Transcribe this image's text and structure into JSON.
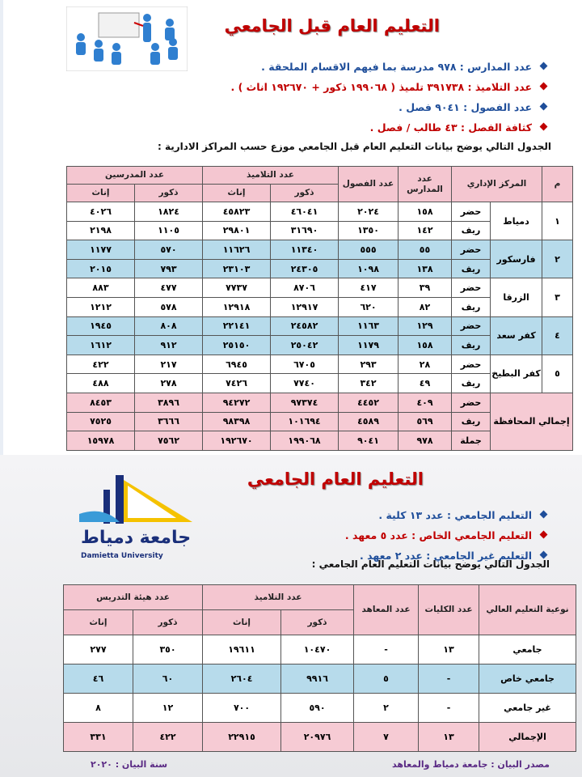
{
  "section1": {
    "title": "التعليم العام قبل الجامعي",
    "bullets": [
      {
        "text": "عدد المدارس : ٩٧٨ مدرسة بما فيهم الاقسام الملحقة .",
        "color": "#1f4e9a"
      },
      {
        "text": "عدد التلاميذ : ٣٩١٧٣٨ تلميذ ( ١٩٩٠٦٨ ذكور + ١٩٢٦٧٠ اناث ) .",
        "color": "#c00000"
      },
      {
        "text": "عدد الفصول : ٩٠٤١ فصل .",
        "color": "#1f4e9a"
      },
      {
        "text": "كثافة الفصل : ٤٣ طالب / فصل .",
        "color": "#c00000"
      }
    ],
    "intro": "الجدول التالي يوضح بيانات التعليم العام قبل الجامعي موزع حسب المراكز الادارية :",
    "table": {
      "headers": {
        "num": "م",
        "center": "المركز الإداري",
        "schools": "عدد المدارس",
        "classes": "عدد الفصول",
        "students": "عدد التلاميذ",
        "teachers": "عدد المدرسين",
        "male": "ذكور",
        "female": "إناث"
      },
      "groups": [
        {
          "num": "١",
          "center": "دمياط",
          "rows": [
            [
              "حضر",
              "١٥٨",
              "٢٠٢٤",
              "٤٦٠٤١",
              "٤٥٨٢٣",
              "١٨٢٤",
              "٤٠٢٦"
            ],
            [
              "ريف",
              "١٤٢",
              "١٣٥٠",
              "٣١٦٩٠",
              "٢٩٨٠١",
              "١١٠٥",
              "٢١٩٨"
            ]
          ]
        },
        {
          "num": "٢",
          "center": "فارسكور",
          "rows": [
            [
              "حضر",
              "٥٥",
              "٥٥٥",
              "١١٣٤٠",
              "١١٦٢٦",
              "٥٧٠",
              "١١٧٧"
            ],
            [
              "ريف",
              "١٣٨",
              "١٠٩٨",
              "٢٤٣٠٥",
              "٢٣١٠٣",
              "٧٩٣",
              "٢٠١٥"
            ]
          ]
        },
        {
          "num": "٣",
          "center": "الزرقا",
          "rows": [
            [
              "حضر",
              "٣٩",
              "٤١٧",
              "٨٧٠٦",
              "٧٧٣٧",
              "٤٧٧",
              "٨٨٣"
            ],
            [
              "ريف",
              "٨٢",
              "٦٢٠",
              "١٢٩١٧",
              "١٢٩١٨",
              "٥٧٨",
              "١٢١٢"
            ]
          ]
        },
        {
          "num": "٤",
          "center": "كفر سعد",
          "rows": [
            [
              "حضر",
              "١٢٩",
              "١١٦٣",
              "٢٤٥٨٢",
              "٢٢١٤١",
              "٨٠٨",
              "١٩٤٥"
            ],
            [
              "ريف",
              "١٥٨",
              "١١٧٩",
              "٢٥٠٤٢",
              "٢٥١٥٠",
              "٩١٢",
              "١٦١٢"
            ]
          ]
        },
        {
          "num": "٥",
          "center": "كفر البطيخ",
          "rows": [
            [
              "حضر",
              "٢٨",
              "٢٩٣",
              "٦٧٠٥",
              "٦٩٤٥",
              "٢١٧",
              "٤٢٢"
            ],
            [
              "ريف",
              "٤٩",
              "٣٤٢",
              "٧٧٤٠",
              "٧٤٢٦",
              "٢٧٨",
              "٤٨٨"
            ]
          ]
        },
        {
          "center": "إجمالي المحافظة",
          "rows": [
            [
              "حضر",
              "٤٠٩",
              "٤٤٥٢",
              "٩٧٣٧٤",
              "٩٤٢٧٢",
              "٣٨٩٦",
              "٨٤٥٣"
            ],
            [
              "ريف",
              "٥٦٩",
              "٤٥٨٩",
              "١٠١٦٩٤",
              "٩٨٣٩٨",
              "٣٦٦٦",
              "٧٥٢٥"
            ],
            [
              "جملة",
              "٩٧٨",
              "٩٠٤١",
              "١٩٩٠٦٨",
              "١٩٢٦٧٠",
              "٧٥٦٢",
              "١٥٩٧٨"
            ]
          ]
        }
      ]
    }
  },
  "section2": {
    "title": "التعليم العام الجامعي",
    "logo": {
      "arabic": "جامعة دمياط",
      "english": "Damietta University"
    },
    "bullets": [
      {
        "text": "التعليم الجامعي : عدد ١٣ كلية .",
        "color": "#1f4e9a"
      },
      {
        "text": "التعليم الجامعي الخاص : عدد ٥ معهد .",
        "color": "#c00000"
      },
      {
        "text": "التعليم غير الجامعي : عدد ٢ معهد .",
        "color": "#1f4e9a"
      }
    ],
    "intro": "الجدول التالي يوضح بيانات التعليم العام الجامعي :",
    "table": {
      "headers": {
        "type": "نوعية التعليم العالي",
        "colleges": "عدد الكليات",
        "institutes": "عدد المعاهد",
        "students": "عدد التلاميذ",
        "staff": "عدد هيئة التدريس",
        "male": "ذكور",
        "female": "إناث"
      },
      "rows": [
        [
          "جامعي",
          "١٣",
          "-",
          "١٠٤٧٠",
          "١٩٦١١",
          "٣٥٠",
          "٢٧٧"
        ],
        [
          "جامعي خاص",
          "-",
          "٥",
          "٩٩١٦",
          "٢٦٠٤",
          "٦٠",
          "٤٦"
        ],
        [
          "غير جامعي",
          "-",
          "٢",
          "٥٩٠",
          "٧٠٠",
          "١٢",
          "٨"
        ],
        [
          "الإجمالي",
          "١٣",
          "٧",
          "٢٠٩٧٦",
          "٢٢٩١٥",
          "٤٢٢",
          "٣٣١"
        ]
      ]
    }
  },
  "footer": {
    "source": "مصدر البيان : جامعة دمياط والمعاهد",
    "year": "سنة البيان : ٢٠٢٠"
  }
}
